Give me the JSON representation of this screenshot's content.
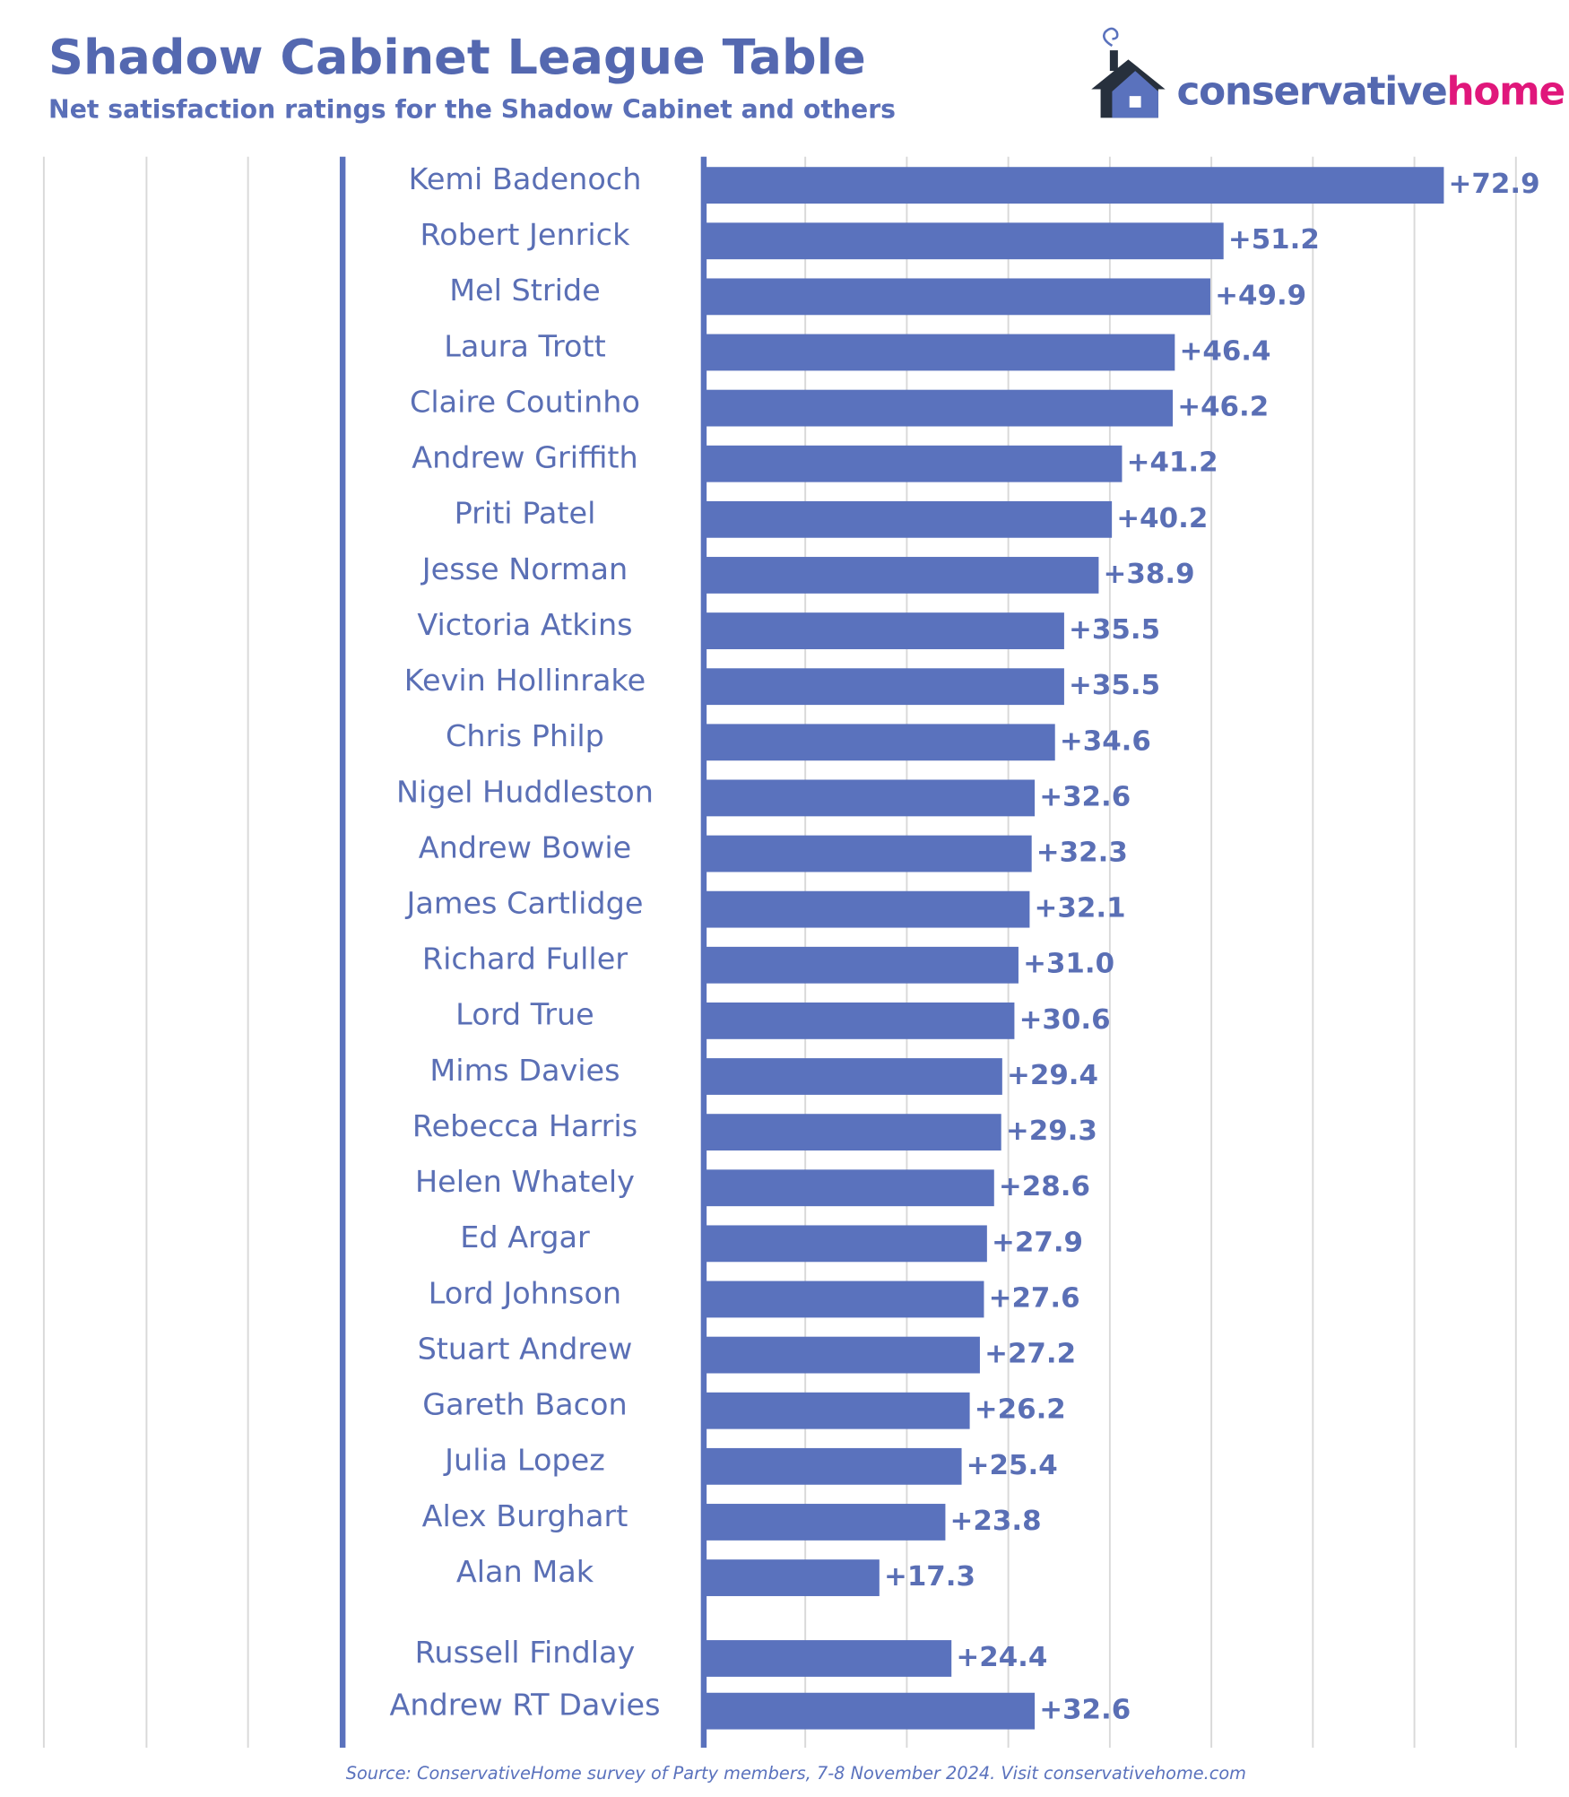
{
  "chart_data": {
    "type": "barh",
    "title": "Shadow Cabinet League Table",
    "subtitle": "Net satisfaction ratings for the Shadow Cabinet and others",
    "logo": {
      "text_1": "conservative",
      "text_2": "home"
    },
    "source": "Source: ConservativeHome survey of Party members, 7-8 November 2024. Visit conservativehome.com",
    "categories": [
      "Kemi Badenoch",
      "Robert Jenrick",
      "Mel Stride",
      "Laura Trott",
      "Claire Coutinho",
      "Andrew Griffith",
      "Priti Patel",
      "Jesse Norman",
      "Victoria Atkins",
      "Kevin Hollinrake",
      "Chris Philp",
      "Nigel Huddleston",
      "Andrew Bowie",
      "James Cartlidge",
      "Richard Fuller",
      "Lord True",
      "Mims Davies",
      "Rebecca Harris",
      "Helen Whately",
      "Ed Argar",
      "Lord Johnson",
      "Stuart Andrew",
      "Gareth Bacon",
      "Julia Lopez",
      "Alex Burghart",
      "Alan Mak",
      "Russell Findlay",
      "Andrew RT Davies"
    ],
    "values": [
      72.9,
      51.2,
      49.9,
      46.4,
      46.2,
      41.2,
      40.2,
      38.9,
      35.5,
      35.5,
      34.6,
      32.6,
      32.3,
      32.1,
      31.0,
      30.6,
      29.4,
      29.3,
      28.6,
      27.9,
      27.6,
      27.2,
      26.2,
      25.4,
      23.8,
      17.3,
      24.4,
      32.6
    ],
    "value_labels": [
      "+72.9",
      "+51.2",
      "+49.9",
      "+46.4",
      "+46.2",
      "+41.2",
      "+40.2",
      "+38.9",
      "+35.5",
      "+35.5",
      "+34.6",
      "+32.6",
      "+32.3",
      "+32.1",
      "+31.0",
      "+30.6",
      "+29.4",
      "+29.3",
      "+28.6",
      "+27.9",
      "+27.6",
      "+27.2",
      "+26.2",
      "+25.4",
      "+23.8",
      "+17.3",
      "+24.4",
      "+32.6"
    ],
    "color": "#5a72bd",
    "xlim": [
      0,
      80
    ],
    "xticks": [
      0,
      10,
      20,
      30,
      40,
      50,
      60,
      70,
      80
    ],
    "grid": true
  }
}
